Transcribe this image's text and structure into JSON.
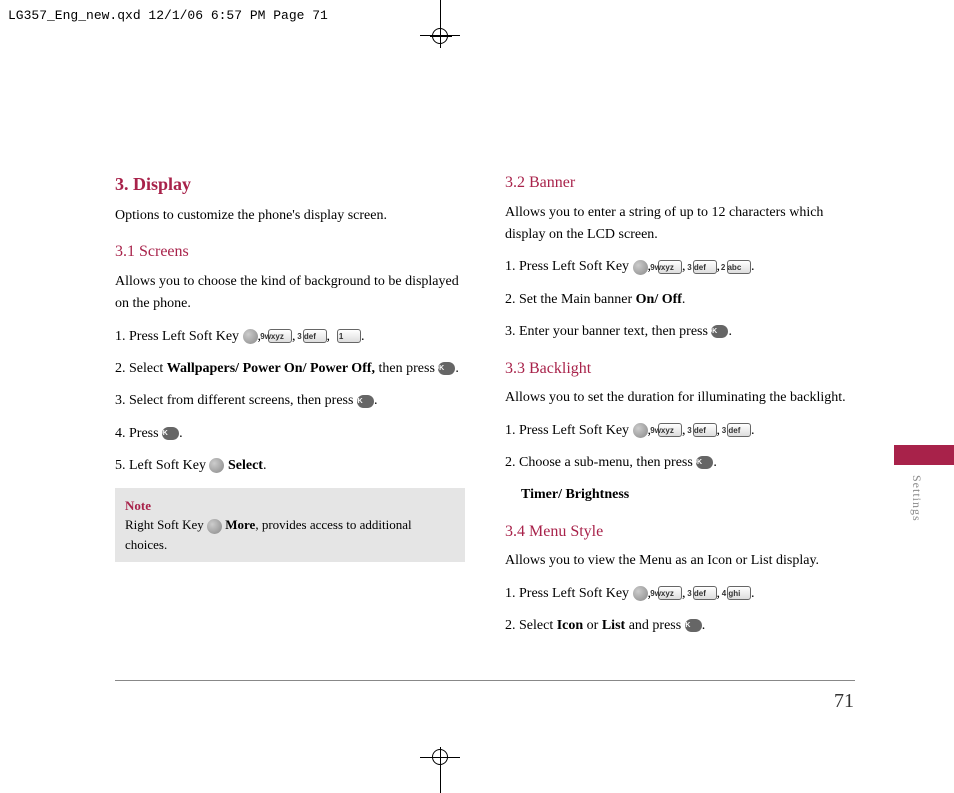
{
  "header": "LG357_Eng_new.qxd  12/1/06  6:57 PM  Page 71",
  "colors": {
    "accent": "#a8224a",
    "note_bg": "#e5e5e5"
  },
  "side_label": "Settings",
  "page_number": "71",
  "left": {
    "h1": "3. Display",
    "intro": "Options to customize the phone's display screen.",
    "h2": "3.1 Screens",
    "p1": "Allows you to choose the kind of background to be displayed on the phone.",
    "s1_a": "1. Press Left Soft Key ",
    "s1_keys": [
      "9wxyz",
      "3 def",
      "1"
    ],
    "s2_a": "2. Select ",
    "s2_bold": "Wallpapers/ Power On/ Power Off,",
    "s2_b": " then press ",
    "s3_a": "3. Select from different screens, then press ",
    "s4_a": "4. Press ",
    "s5_a": "5. Left Soft Key ",
    "s5_bold": " Select",
    "note_title": "Note",
    "note_a": "Right Soft Key ",
    "note_bold": " More",
    "note_b": ", provides access to additional choices."
  },
  "right": {
    "h2a": "3.2 Banner",
    "p2a": "Allows you to enter a string of up to 12 characters which display on the LCD screen.",
    "s2a1": "1. Press Left Soft Key ",
    "s2a1_keys": [
      "9wxyz",
      "3 def",
      "2 abc"
    ],
    "s2a2_a": "2. Set the Main banner ",
    "s2a2_bold": "On/ Off",
    "s2a3": "3. Enter your banner text, then press ",
    "h2b": "3.3 Backlight",
    "p2b": "Allows you to set the duration for illuminating the backlight.",
    "s2b1": "1. Press Left Soft Key ",
    "s2b1_keys": [
      "9wxyz",
      "3 def",
      "3 def"
    ],
    "s2b2": "2. Choose a sub-menu, then press ",
    "s2b_bold": "Timer/ Brightness",
    "h2c": "3.4 Menu Style",
    "p2c": "Allows you to view the Menu as an Icon or List display.",
    "s2c1": "1. Press Left Soft Key ",
    "s2c1_keys": [
      "9wxyz",
      "3 def",
      "4 ghi"
    ],
    "s2c2_a": "2. Select ",
    "s2c2_bold1": "Icon",
    "s2c2_b": " or ",
    "s2c2_bold2": "List",
    "s2c2_c": " and press "
  }
}
